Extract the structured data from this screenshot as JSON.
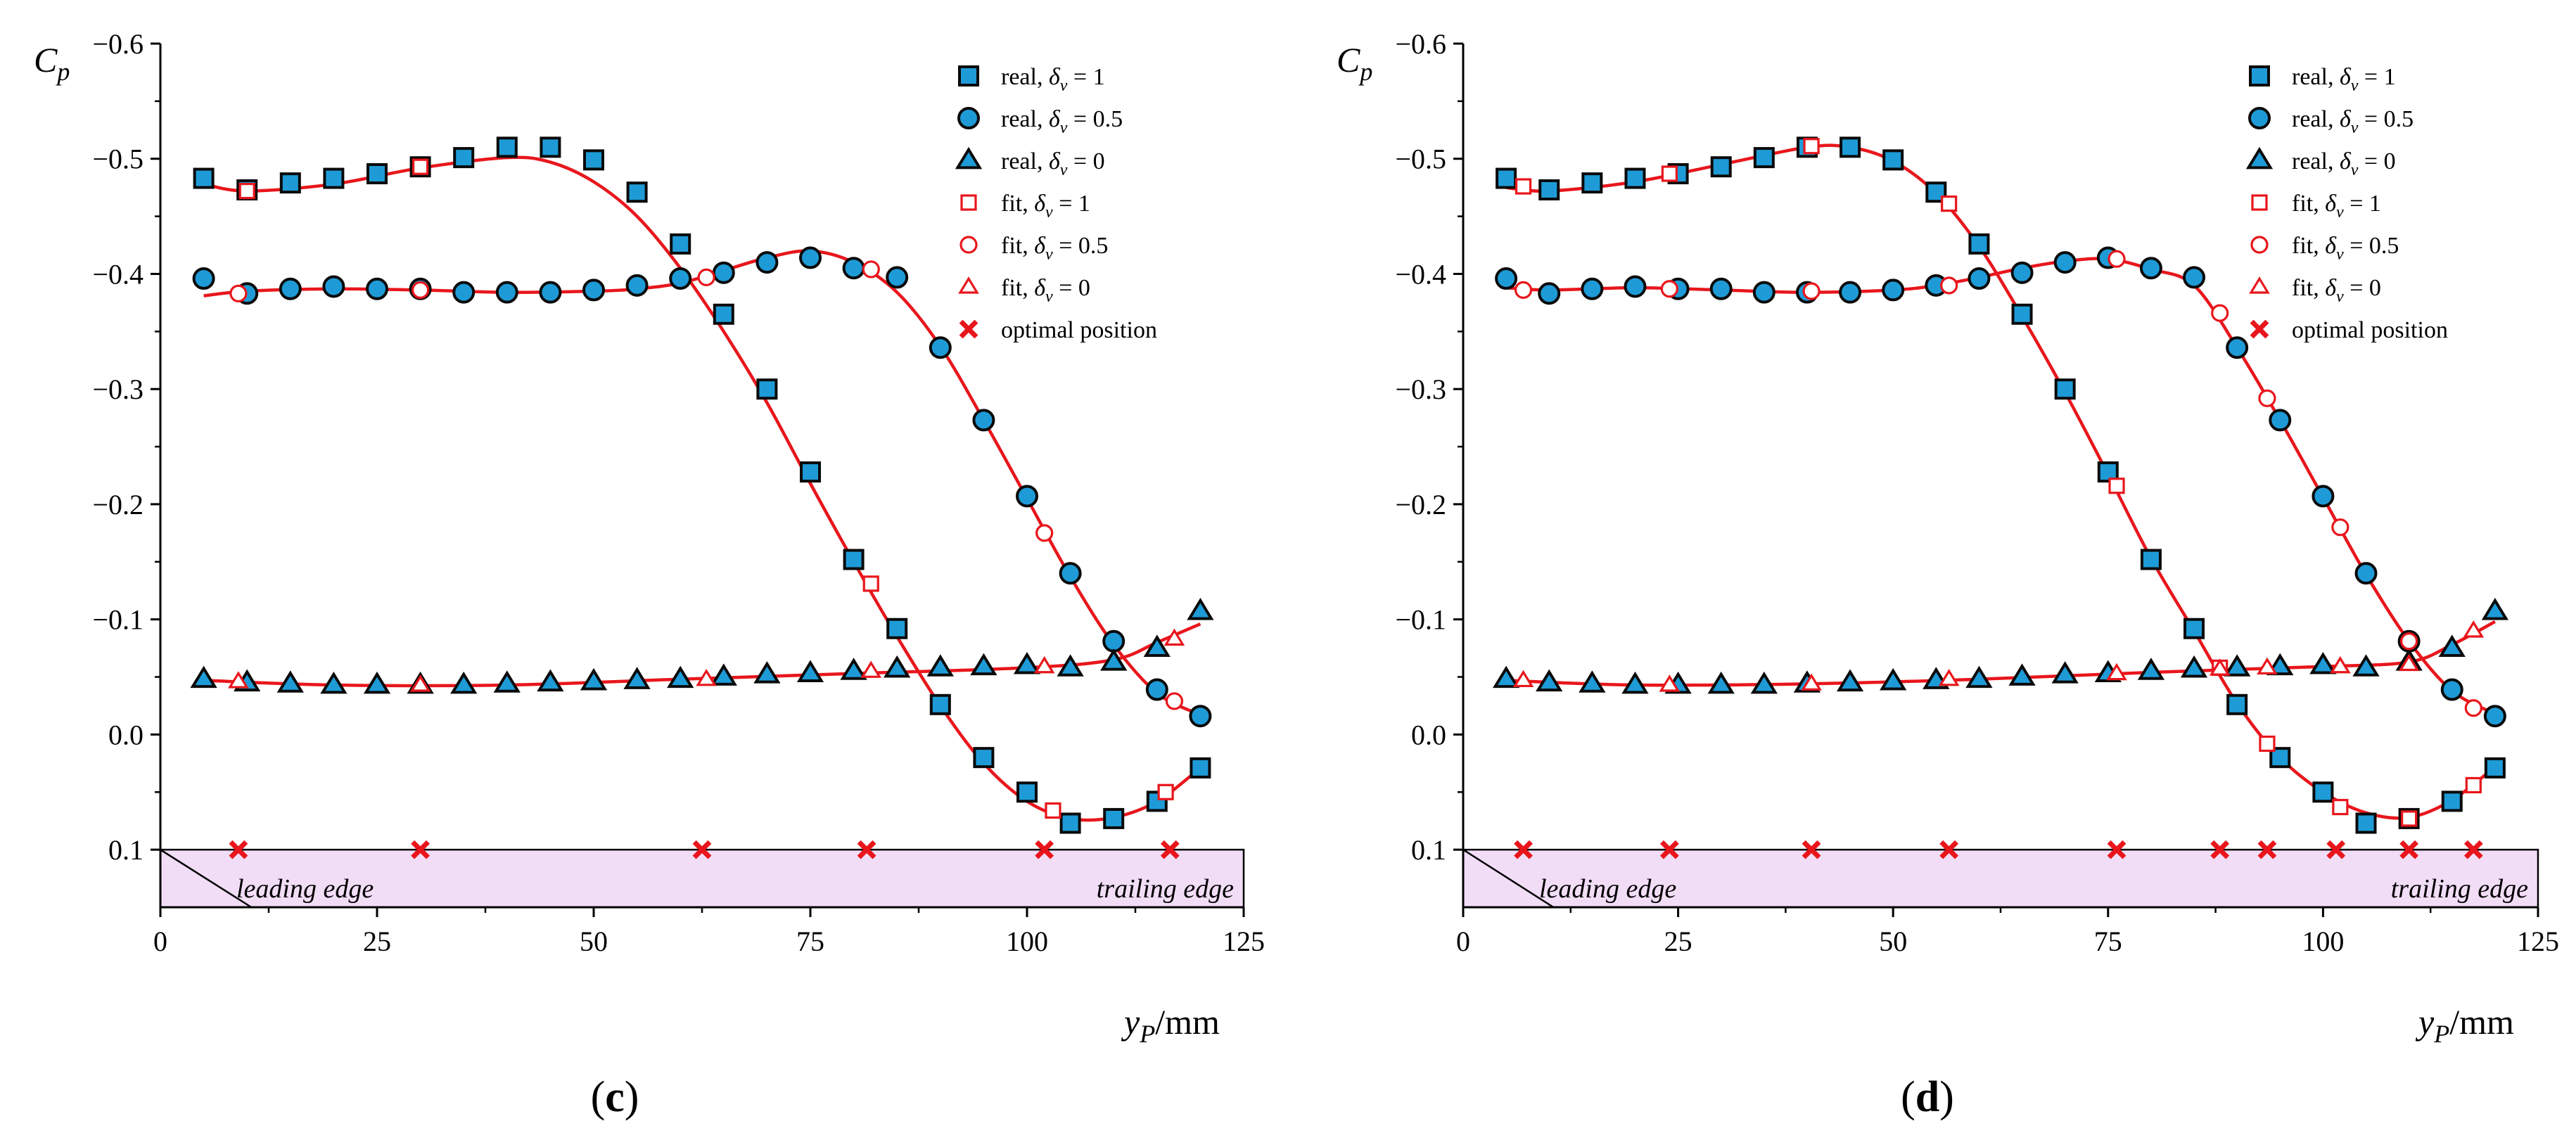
{
  "colors": {
    "marker_fill": "#1e9bd7",
    "marker_stroke": "#0a0a0a",
    "fit": "#e8161c",
    "optimal": "#e8161c",
    "band_fill": "#f2ddf7",
    "axis": "#000000"
  },
  "common": {
    "ylabel_main": "C",
    "ylabel_sub": "p",
    "xlabel_main": "y",
    "xlabel_sub": "P",
    "xlabel_unit": "/mm",
    "leading_edge": "leading edge",
    "trailing_edge": "trailing edge",
    "xlim": [
      0,
      125
    ],
    "ylim": [
      0.15,
      -0.6
    ],
    "xticks": [
      0,
      25,
      50,
      75,
      100,
      125
    ],
    "xtick_labels": [
      "0",
      "25",
      "50",
      "75",
      "100",
      "125"
    ],
    "yticks": [
      0.1,
      0.0,
      -0.1,
      -0.2,
      -0.3,
      -0.4,
      -0.5,
      -0.6
    ],
    "ytick_labels": [
      "0.1",
      "0.0",
      "−0.1",
      "−0.2",
      "−0.3",
      "−0.4",
      "−0.5",
      "−0.6"
    ],
    "band_y": [
      0.1,
      0.15
    ],
    "legend": [
      {
        "kind": "real",
        "marker": "square",
        "prefix": "real, ",
        "sym": "δ",
        "sub": "v",
        "value": " = 1"
      },
      {
        "kind": "real",
        "marker": "circle",
        "prefix": "real, ",
        "sym": "δ",
        "sub": "v",
        "value": " = 0.5"
      },
      {
        "kind": "real",
        "marker": "triangle",
        "prefix": "real, ",
        "sym": "δ",
        "sub": "v",
        "value": " = 0"
      },
      {
        "kind": "fit",
        "marker": "square",
        "prefix": "fit, ",
        "sym": "δ",
        "sub": "v",
        "value": " = 1"
      },
      {
        "kind": "fit",
        "marker": "circle",
        "prefix": "fit, ",
        "sym": "δ",
        "sub": "v",
        "value": " = 0.5"
      },
      {
        "kind": "fit",
        "marker": "triangle",
        "prefix": "fit, ",
        "sym": "δ",
        "sub": "v",
        "value": " = 0"
      },
      {
        "kind": "optimal",
        "marker": "cross",
        "prefix": "optimal position",
        "sym": "",
        "sub": "",
        "value": ""
      }
    ]
  },
  "chart_data": [
    {
      "type": "scatter",
      "panel_label": "c",
      "xlabel": "yP/mm",
      "ylabel": "Cp",
      "x": [
        5,
        10,
        15,
        20,
        25,
        30,
        35,
        40,
        45,
        50,
        55,
        60,
        65,
        70,
        75,
        80,
        85,
        90,
        95,
        100,
        105,
        110,
        115,
        120
      ],
      "series": [
        {
          "name": "real, δv = 1",
          "marker": "square",
          "values": [
            -0.483,
            -0.473,
            -0.479,
            -0.483,
            -0.487,
            -0.493,
            -0.501,
            -0.51,
            -0.51,
            -0.499,
            -0.471,
            -0.426,
            -0.365,
            -0.3,
            -0.228,
            -0.152,
            -0.092,
            -0.026,
            0.02,
            0.05,
            0.077,
            0.073,
            0.058,
            0.029
          ]
        },
        {
          "name": "real, δv = 0.5",
          "marker": "circle",
          "values": [
            -0.396,
            -0.383,
            -0.387,
            -0.389,
            -0.387,
            -0.387,
            -0.384,
            -0.384,
            -0.384,
            -0.386,
            -0.39,
            -0.396,
            -0.401,
            -0.41,
            -0.414,
            -0.405,
            -0.397,
            -0.336,
            -0.273,
            -0.207,
            -0.14,
            -0.081,
            -0.039,
            -0.016
          ]
        },
        {
          "name": "real, δv = 0",
          "marker": "triangle",
          "values": [
            -0.048,
            -0.045,
            -0.044,
            -0.043,
            -0.043,
            -0.043,
            -0.043,
            -0.044,
            -0.045,
            -0.046,
            -0.047,
            -0.048,
            -0.05,
            -0.052,
            -0.053,
            -0.055,
            -0.057,
            -0.058,
            -0.059,
            -0.06,
            -0.058,
            -0.063,
            -0.075,
            -0.107
          ]
        },
        {
          "name": "fit, δv = 1",
          "marker": "square-open",
          "x": [
            10,
            30,
            82,
            103,
            116
          ],
          "values": [
            -0.472,
            -0.493,
            -0.131,
            0.066,
            0.05
          ]
        },
        {
          "name": "fit, δv = 0.5",
          "marker": "circle-open",
          "x": [
            9,
            30,
            63,
            82,
            102,
            117
          ],
          "values": [
            -0.383,
            -0.386,
            -0.397,
            -0.404,
            -0.175,
            -0.029
          ]
        },
        {
          "name": "fit, δv = 0",
          "marker": "triangle-open",
          "x": [
            9,
            30,
            63,
            82,
            102,
            117
          ],
          "values": [
            -0.046,
            -0.043,
            -0.048,
            -0.055,
            -0.059,
            -0.083
          ]
        },
        {
          "name": "optimal position",
          "marker": "cross",
          "x": [
            9,
            30,
            62.5,
            81.5,
            102,
            116.5
          ],
          "values": [
            0.1,
            0.1,
            0.1,
            0.1,
            0.1,
            0.1
          ]
        }
      ],
      "fit_curves": [
        {
          "name": "fit, δv = 1",
          "x": [
            5,
            10,
            20,
            30,
            40,
            45,
            50,
            55,
            60,
            65,
            70,
            75,
            80,
            85,
            90,
            95,
            100,
            105,
            110,
            115,
            120
          ],
          "values": [
            -0.478,
            -0.472,
            -0.478,
            -0.492,
            -0.501,
            -0.497,
            -0.48,
            -0.45,
            -0.405,
            -0.35,
            -0.288,
            -0.218,
            -0.15,
            -0.085,
            -0.025,
            0.025,
            0.058,
            0.073,
            0.072,
            0.058,
            0.029
          ]
        },
        {
          "name": "fit, δv = 0.5",
          "x": [
            5,
            10,
            20,
            30,
            40,
            50,
            55,
            60,
            65,
            70,
            75,
            80,
            85,
            90,
            95,
            100,
            105,
            110,
            115,
            120
          ],
          "values": [
            -0.381,
            -0.385,
            -0.387,
            -0.386,
            -0.384,
            -0.385,
            -0.387,
            -0.392,
            -0.403,
            -0.414,
            -0.42,
            -0.41,
            -0.384,
            -0.337,
            -0.273,
            -0.205,
            -0.137,
            -0.078,
            -0.036,
            -0.017
          ]
        },
        {
          "name": "fit, δv = 0",
          "x": [
            5,
            20,
            40,
            60,
            80,
            100,
            110,
            115,
            120
          ],
          "values": [
            -0.047,
            -0.043,
            -0.043,
            -0.048,
            -0.053,
            -0.058,
            -0.065,
            -0.08,
            -0.096
          ]
        }
      ],
      "title": "",
      "xlim": [
        0,
        125
      ],
      "ylim": [
        0.15,
        -0.6
      ]
    },
    {
      "type": "scatter",
      "panel_label": "d",
      "xlabel": "yP/mm",
      "ylabel": "Cp",
      "x": [
        5,
        10,
        15,
        20,
        25,
        30,
        35,
        40,
        45,
        50,
        55,
        60,
        65,
        70,
        75,
        80,
        85,
        90,
        95,
        100,
        105,
        110,
        115,
        120
      ],
      "series": [
        {
          "name": "real, δv = 1",
          "marker": "square",
          "values": [
            -0.483,
            -0.473,
            -0.479,
            -0.483,
            -0.487,
            -0.493,
            -0.501,
            -0.51,
            -0.51,
            -0.499,
            -0.471,
            -0.426,
            -0.365,
            -0.3,
            -0.228,
            -0.152,
            -0.092,
            -0.026,
            0.02,
            0.05,
            0.077,
            0.073,
            0.058,
            0.029
          ]
        },
        {
          "name": "real, δv = 0.5",
          "marker": "circle",
          "values": [
            -0.396,
            -0.383,
            -0.387,
            -0.389,
            -0.387,
            -0.387,
            -0.384,
            -0.384,
            -0.384,
            -0.386,
            -0.39,
            -0.396,
            -0.401,
            -0.41,
            -0.414,
            -0.405,
            -0.397,
            -0.336,
            -0.273,
            -0.207,
            -0.14,
            -0.081,
            -0.039,
            -0.016
          ]
        },
        {
          "name": "real, δv = 0",
          "marker": "triangle",
          "values": [
            -0.048,
            -0.045,
            -0.044,
            -0.043,
            -0.043,
            -0.043,
            -0.043,
            -0.044,
            -0.045,
            -0.046,
            -0.047,
            -0.048,
            -0.05,
            -0.052,
            -0.053,
            -0.055,
            -0.057,
            -0.058,
            -0.059,
            -0.06,
            -0.058,
            -0.063,
            -0.075,
            -0.107
          ]
        },
        {
          "name": "fit, δv = 1",
          "marker": "square-open",
          "x": [
            7,
            24,
            40.5,
            56.5,
            76,
            88,
            93.5,
            102,
            110,
            117.5
          ],
          "values": [
            -0.476,
            -0.487,
            -0.511,
            -0.461,
            -0.216,
            -0.058,
            0.008,
            0.063,
            0.073,
            0.044
          ]
        },
        {
          "name": "fit, δv = 0.5",
          "marker": "circle-open",
          "x": [
            7,
            24,
            40.5,
            56.5,
            76,
            88,
            93.5,
            102,
            110,
            117.5
          ],
          "values": [
            -0.386,
            -0.387,
            -0.385,
            -0.39,
            -0.413,
            -0.366,
            -0.292,
            -0.18,
            -0.081,
            -0.023
          ]
        },
        {
          "name": "fit, δv = 0",
          "marker": "triangle-open",
          "x": [
            7,
            24,
            40.5,
            56.5,
            76,
            88,
            93.5,
            102,
            110,
            117.5
          ],
          "values": [
            -0.047,
            -0.043,
            -0.044,
            -0.048,
            -0.053,
            -0.057,
            -0.058,
            -0.059,
            -0.061,
            -0.09
          ]
        },
        {
          "name": "optimal position",
          "marker": "cross",
          "x": [
            7,
            24,
            40.5,
            56.5,
            76,
            88,
            93.5,
            101.5,
            110,
            117.5
          ],
          "values": [
            0.1,
            0.1,
            0.1,
            0.1,
            0.1,
            0.1,
            0.1,
            0.1,
            0.1,
            0.1
          ]
        }
      ],
      "fit_curves": [
        {
          "name": "fit, δv = 1",
          "x": [
            5,
            10,
            20,
            30,
            40,
            45,
            50,
            55,
            60,
            65,
            70,
            75,
            80,
            85,
            90,
            95,
            100,
            105,
            110,
            115,
            120
          ],
          "values": [
            -0.475,
            -0.472,
            -0.48,
            -0.495,
            -0.51,
            -0.51,
            -0.498,
            -0.47,
            -0.424,
            -0.363,
            -0.297,
            -0.226,
            -0.153,
            -0.09,
            -0.027,
            0.02,
            0.05,
            0.068,
            0.072,
            0.057,
            0.028
          ]
        },
        {
          "name": "fit, δv = 0.5",
          "x": [
            5,
            10,
            20,
            30,
            40,
            50,
            55,
            60,
            65,
            70,
            75,
            80,
            85,
            90,
            95,
            100,
            105,
            110,
            115,
            120
          ],
          "values": [
            -0.388,
            -0.386,
            -0.388,
            -0.386,
            -0.384,
            -0.386,
            -0.39,
            -0.397,
            -0.405,
            -0.411,
            -0.413,
            -0.404,
            -0.39,
            -0.336,
            -0.273,
            -0.206,
            -0.139,
            -0.081,
            -0.038,
            -0.018
          ]
        },
        {
          "name": "fit, δv = 0",
          "x": [
            5,
            20,
            40,
            60,
            80,
            100,
            110,
            115,
            120
          ],
          "values": [
            -0.047,
            -0.043,
            -0.044,
            -0.048,
            -0.054,
            -0.059,
            -0.063,
            -0.078,
            -0.098
          ]
        }
      ],
      "title": "",
      "xlim": [
        0,
        125
      ],
      "ylim": [
        0.15,
        -0.6
      ]
    }
  ]
}
